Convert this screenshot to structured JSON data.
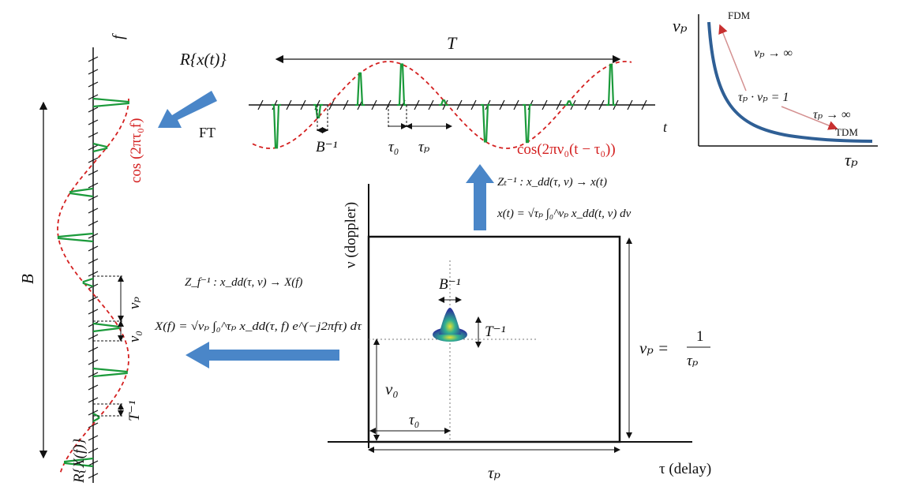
{
  "colors": {
    "signal": "#1a9a3a",
    "envelope": "#d42020",
    "arrow": "#4a86c8",
    "curve": "#2f5f95",
    "axis": "#111111"
  },
  "inset": {
    "y_label": "νₚ",
    "x_label": "τₚ",
    "fdm": "FDM",
    "tdm": "TDM",
    "nu_inf": "νₚ → ∞",
    "product": "τₚ · νₚ = 1",
    "tau_inf": "τₚ → ∞"
  },
  "time_signal": {
    "title": "R{x(t)}",
    "T": "T",
    "axis": "t",
    "b_inv": "B⁻¹",
    "tau0": "τ₀",
    "taup": "τₚ",
    "envelope": "cos(2πν₀(t − τ₀))"
  },
  "ft": "FT",
  "freq_signal": {
    "axis": "f",
    "B": "B",
    "envelope": "cos (2πτ₀f)",
    "title": "R{X(f)}",
    "nup": "νₚ",
    "nu0": "ν₀",
    "t_inv": "T⁻¹"
  },
  "formulas": {
    "zt_map": "Zₜ⁻¹ : x_dd(τ, ν) → x(t)",
    "zt_int": "x(t) = √τₚ ∫₀^νₚ x_dd(t, ν) dν",
    "zf_map": "Z_f⁻¹ :  x_dd(τ, ν) → X(f)",
    "zf_int": "X(f) = √νₚ ∫₀^τₚ x_dd(τ, f) e^(−j2πfτ) dτ"
  },
  "dd_grid": {
    "y_label": "ν (doppler)",
    "x_label": "τ (delay)",
    "taup": "τₚ",
    "nup_eq": "νₚ =",
    "one": "1",
    "taup_den": "τₚ",
    "nu0": "ν₀",
    "tau0": "τ₀",
    "b_inv": "B⁻¹",
    "t_inv": "T⁻¹"
  }
}
